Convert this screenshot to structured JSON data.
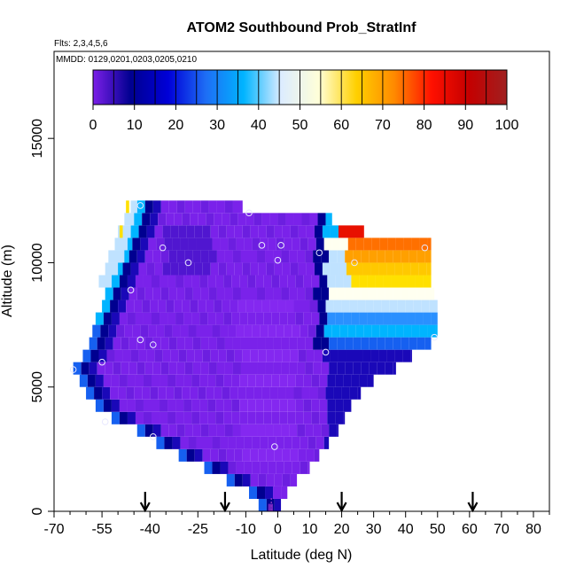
{
  "chart_data": {
    "type": "heatmap",
    "title": "ATOM2 Southbound Prob_StratInf",
    "subtitle_flights": "Flts: 2,3,4,5,6",
    "subtitle_dates": "MMDD: 0129,0201,0203,0205,0210",
    "xlabel": "Latitude (deg N)",
    "ylabel": "Altitude (m)",
    "xlim": [
      -70,
      85
    ],
    "ylim": [
      0,
      18500
    ],
    "x_ticks": [
      -70,
      -55,
      -40,
      -25,
      -10,
      0,
      10,
      20,
      30,
      40,
      50,
      60,
      70,
      80
    ],
    "x_tick_labels": [
      "-70",
      "-55",
      "-40",
      "-25",
      "-10",
      "0",
      "10",
      "20",
      "30",
      "40",
      "50",
      "60",
      "70",
      "80"
    ],
    "x_minor_ticks": [
      -65,
      -60,
      -50,
      -45,
      -35,
      -30,
      -20,
      -15,
      -5,
      5,
      15,
      25,
      35,
      45,
      55,
      65,
      75,
      85
    ],
    "y_ticks": [
      0,
      5000,
      10000,
      15000
    ],
    "y_tick_labels": [
      "0",
      "5000",
      "10000",
      "15000"
    ],
    "colorbar": {
      "min": 0,
      "max": 100,
      "tick_values": [
        0,
        10,
        20,
        30,
        40,
        50,
        60,
        70,
        80,
        90,
        100
      ],
      "tick_labels": [
        "0",
        "10",
        "20",
        "30",
        "40",
        "50",
        "60",
        "70",
        "80",
        "90",
        "100"
      ],
      "colors": [
        "#7b1fe8",
        "#000090",
        "#0000d8",
        "#1e6ef5",
        "#00b4ff",
        "#dcecff",
        "#ffffd8",
        "#ffd000",
        "#ff8a00",
        "#ff1000",
        "#c40000",
        "#a02020"
      ]
    },
    "profile_arrows_lat": [
      -41.5,
      -16.5,
      20,
      61
    ],
    "profile_marker_lat": -2,
    "sample_points": [
      {
        "lat": -43,
        "alt": 12300
      },
      {
        "lat": -36,
        "alt": 10600
      },
      {
        "lat": -28,
        "alt": 10000
      },
      {
        "lat": -46,
        "alt": 8900
      },
      {
        "lat": -43,
        "alt": 6900
      },
      {
        "lat": -39,
        "alt": 6700
      },
      {
        "lat": -55,
        "alt": 6000
      },
      {
        "lat": -64,
        "alt": 5700
      },
      {
        "lat": -54,
        "alt": 3600
      },
      {
        "lat": -39,
        "alt": 3000
      },
      {
        "lat": -9,
        "alt": 12000
      },
      {
        "lat": -5,
        "alt": 10700
      },
      {
        "lat": 1,
        "alt": 10700
      },
      {
        "lat": 0,
        "alt": 10100
      },
      {
        "lat": 13,
        "alt": 10400
      },
      {
        "lat": 24,
        "alt": 10000
      },
      {
        "lat": 46,
        "alt": 10600
      },
      {
        "lat": 15,
        "alt": 6400
      },
      {
        "lat": 49,
        "alt": 7000
      },
      {
        "lat": -1,
        "alt": 2600
      }
    ],
    "field_categories": {
      "low": "0-5",
      "deep": "10-20",
      "edge": "30-40",
      "pale": "50-60",
      "yellow": "60-70",
      "orange": "70-80",
      "red": "80-100"
    }
  }
}
